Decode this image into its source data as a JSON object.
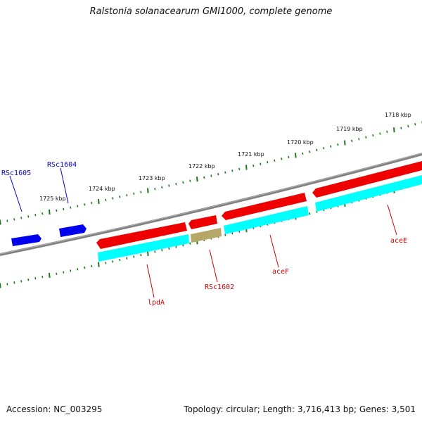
{
  "title": "Ralstonia solanacearum GMI1000, complete genome",
  "footer": {
    "accession": "Accession: NC_003295",
    "summary": "Topology: circular; Length: 3,716,413 bp; Genes: 3,501"
  },
  "colors": {
    "backbone": "#808080",
    "tick": "#1a7a1a",
    "forward_gene": "#0000ee",
    "reverse_gene": "#ee0000",
    "cds": "#00ffff",
    "other_feature": "#b5a866",
    "forward_label": "#0000cc",
    "reverse_label": "#cc0000"
  },
  "ruler": {
    "upper_labels": [
      "1725 kbp",
      "1724 kbp",
      "1723 kbp",
      "1722 kbp",
      "1721 kbp",
      "1720 kbp",
      "1719 kbp",
      "1718 kbp"
    ]
  },
  "features": [
    {
      "label": "RSc1605",
      "strand": "forward",
      "type": "gene"
    },
    {
      "label": "RSc1604",
      "strand": "forward",
      "type": "gene"
    },
    {
      "label": "lpdA",
      "strand": "reverse",
      "type": "gene"
    },
    {
      "label": "RSc1602",
      "strand": "reverse",
      "type": "other"
    },
    {
      "label": "aceF",
      "strand": "reverse",
      "type": "gene"
    },
    {
      "label": "aceE",
      "strand": "reverse",
      "type": "gene"
    }
  ]
}
